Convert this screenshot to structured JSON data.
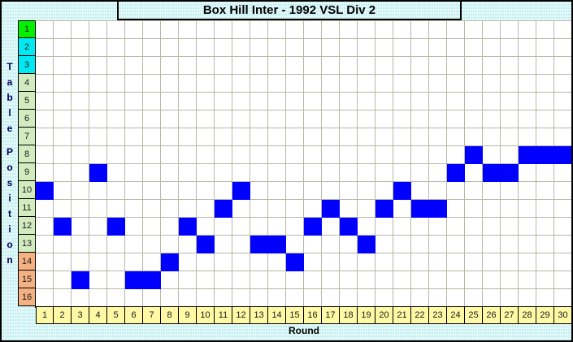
{
  "title": "Box Hill Inter - 1992 VSL Div 2",
  "axes": {
    "y_title": "Table Position",
    "x_title": "Round"
  },
  "position_labels": [
    {
      "label": "1",
      "color": "#00f000"
    },
    {
      "label": "2",
      "color": "#00e9f2"
    },
    {
      "label": "3",
      "color": "#00e9f2"
    },
    {
      "label": "4",
      "color": "#d2ecc0"
    },
    {
      "label": "5",
      "color": "#d2ecc0"
    },
    {
      "label": "6",
      "color": "#d2ecc0"
    },
    {
      "label": "7",
      "color": "#d2ecc0"
    },
    {
      "label": "8",
      "color": "#d2ecc0"
    },
    {
      "label": "9",
      "color": "#d2ecc0"
    },
    {
      "label": "10",
      "color": "#d2ecc0"
    },
    {
      "label": "11",
      "color": "#d2ecc0"
    },
    {
      "label": "12",
      "color": "#d2ecc0"
    },
    {
      "label": "13",
      "color": "#d2ecc0"
    },
    {
      "label": "14",
      "color": "#f4b283"
    },
    {
      "label": "15",
      "color": "#f4b283"
    },
    {
      "label": "16",
      "color": "#f4b283"
    }
  ],
  "round_labels": [
    "1",
    "2",
    "3",
    "4",
    "5",
    "6",
    "7",
    "8",
    "9",
    "10",
    "11",
    "12",
    "13",
    "14",
    "15",
    "16",
    "17",
    "18",
    "19",
    "20",
    "21",
    "22",
    "23",
    "24",
    "25",
    "26",
    "27",
    "28",
    "29",
    "30"
  ],
  "round_cell_color": "#fff9a6",
  "chart_data": {
    "type": "scatter",
    "title": "Box Hill Inter - 1992 VSL Div 2",
    "xlabel": "Round",
    "ylabel": "Table Position",
    "x": [
      1,
      2,
      3,
      4,
      5,
      6,
      7,
      8,
      9,
      10,
      11,
      12,
      13,
      14,
      15,
      16,
      17,
      18,
      19,
      20,
      21,
      22,
      23,
      24,
      25,
      26,
      27,
      28,
      29,
      30
    ],
    "values": [
      10,
      12,
      15,
      9,
      12,
      15,
      15,
      14,
      12,
      13,
      11,
      10,
      13,
      13,
      14,
      12,
      11,
      12,
      13,
      11,
      10,
      11,
      11,
      9,
      8,
      9,
      9,
      8,
      8,
      8
    ],
    "xlim": [
      1,
      30
    ],
    "ylim": [
      1,
      16
    ],
    "y_axis_inverted": true,
    "grid": true,
    "marker": "filled-square",
    "marker_color": "#0000ff",
    "grid_line_color": "#b9b7a9",
    "background_color": "#cdf2f4",
    "position_band_colors": {
      "1": "#00f000",
      "2-3": "#00e9f2",
      "4-13": "#d2ecc0",
      "14-16": "#f4b283"
    }
  }
}
